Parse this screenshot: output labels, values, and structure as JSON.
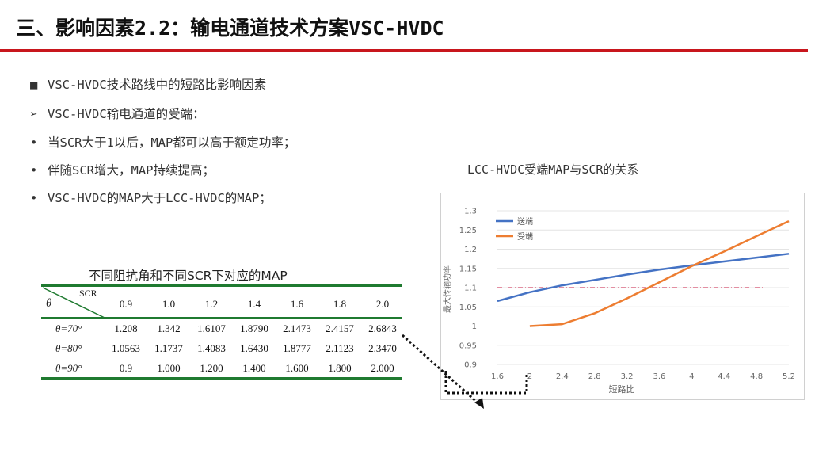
{
  "header": {
    "title": "三、影响因素2.2：输电通道技术方案VSC-HVDC"
  },
  "bullets": [
    {
      "mark": "■",
      "text": "VSC-HVDC技术路线中的短路比影响因素"
    },
    {
      "mark": "➢",
      "text": "VSC-HVDC输电通道的受端："
    },
    {
      "mark": "•",
      "text": "当SCR大于1以后，MAP都可以高于额定功率；"
    },
    {
      "mark": "•",
      "text": "伴随SCR增大，MAP持续提高；"
    },
    {
      "mark": "•",
      "text": "VSC-HVDC的MAP大于LCC-HVDC的MAP；"
    }
  ],
  "table": {
    "title": "不同阻抗角和不同SCR下对应的MAP",
    "corner_top": "SCR",
    "corner_bottom": "θ",
    "columns": [
      "0.9",
      "1.0",
      "1.2",
      "1.4",
      "1.6",
      "1.8",
      "2.0"
    ],
    "rows": [
      {
        "label": "θ=70°",
        "values": [
          "1.208",
          "1.342",
          "1.6107",
          "1.8790",
          "2.1473",
          "2.4157",
          "2.6843"
        ]
      },
      {
        "label": "θ=80°",
        "values": [
          "1.0563",
          "1.1737",
          "1.4083",
          "1.6430",
          "1.8777",
          "2.1123",
          "2.3470"
        ]
      },
      {
        "label": "θ=90°",
        "values": [
          "0.9",
          "1.000",
          "1.200",
          "1.400",
          "1.600",
          "1.800",
          "2.000"
        ]
      }
    ]
  },
  "chart_data": {
    "type": "line",
    "title": "LCC-HVDC受端MAP与SCR的关系",
    "xlabel": "短路比",
    "ylabel": "最大传输功率",
    "x_ticks": [
      "1.6",
      "2",
      "2.4",
      "2.8",
      "3.2",
      "3.6",
      "4",
      "4.4",
      "4.8",
      "5.2"
    ],
    "y_ticks": [
      "0.9",
      "0.95",
      "1",
      "1.05",
      "1.1",
      "1.15",
      "1.2",
      "1.25",
      "1.3"
    ],
    "xlim": [
      1.6,
      5.2
    ],
    "ylim": [
      0.9,
      1.3
    ],
    "legend_position": "top-left",
    "reference_line": 1.1,
    "series": [
      {
        "name": "送端",
        "color": "#4472c4",
        "x": [
          1.6,
          2.0,
          2.4,
          2.8,
          3.2,
          3.6,
          4.0,
          4.4,
          4.8,
          5.2
        ],
        "y": [
          1.065,
          1.088,
          1.106,
          1.12,
          1.134,
          1.147,
          1.158,
          1.168,
          1.178,
          1.188
        ]
      },
      {
        "name": "受端",
        "color": "#ed7d31",
        "x": [
          2.0,
          2.4,
          2.8,
          3.2,
          3.6,
          4.0,
          4.4,
          4.8,
          5.2
        ],
        "y": [
          1.0,
          1.005,
          1.033,
          1.072,
          1.114,
          1.156,
          1.194,
          1.234,
          1.273
        ]
      }
    ]
  }
}
